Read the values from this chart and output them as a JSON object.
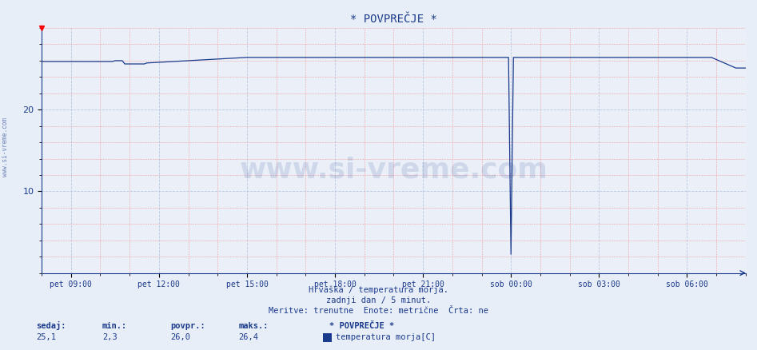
{
  "title": "* POVPREČJE *",
  "bg_color": "#e8eef7",
  "plot_bg_color": "#eaeff8",
  "line_color": "#1a3a8c",
  "grid_color_major": "#b8c8e0",
  "grid_color_minor": "#f0a0a0",
  "y_min": 0,
  "y_max": 30,
  "y_ticks": [
    10,
    20
  ],
  "watermark_text": "www.si-vreme.com",
  "watermark_color": "#1a3a8c",
  "watermark_alpha": 0.13,
  "subtitle1": "Hrvaška / temperatura morja.",
  "subtitle2": "zadnji dan / 5 minut.",
  "subtitle3": "Meritve: trenutne  Enote: metrične  Črta: ne",
  "legend_title": "* POVPREČJE *",
  "legend_label": "temperatura morja[C]",
  "legend_color": "#1a3a8c",
  "stat_labels": [
    "sedaj:",
    "min.:",
    "povpr.:",
    "maks.:"
  ],
  "stat_values": [
    "25,1",
    "2,3",
    "26,0",
    "26,4"
  ],
  "x_tick_labels": [
    "pet 09:00",
    "pet 12:00",
    "pet 15:00",
    "pet 18:00",
    "pet 21:00",
    "sob 00:00",
    "sob 03:00",
    "sob 06:00"
  ],
  "x_tick_positions": [
    60,
    240,
    420,
    600,
    780,
    960,
    1140,
    1320
  ],
  "total_minutes": 1440,
  "font_color_dark": "#1a3a8c"
}
